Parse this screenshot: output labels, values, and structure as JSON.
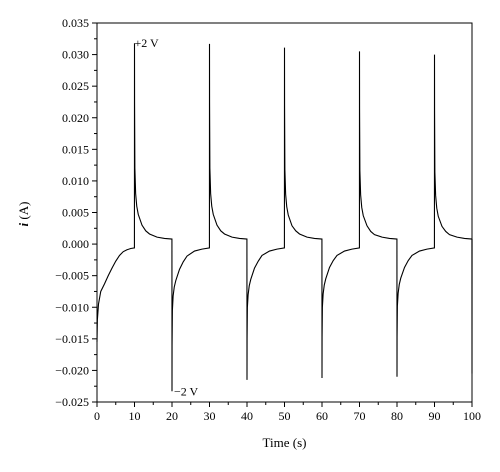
{
  "chart_data": {
    "type": "line",
    "xlabel": "Time (s)",
    "ylabel_italic": "i",
    "ylabel_rest": " (A)",
    "xlim": [
      0,
      100
    ],
    "ylim": [
      -0.025,
      0.035
    ],
    "xticks": [
      0,
      10,
      20,
      30,
      40,
      50,
      60,
      70,
      80,
      90,
      100
    ],
    "yticks": [
      -0.025,
      -0.02,
      -0.015,
      -0.01,
      -0.005,
      0.0,
      0.005,
      0.01,
      0.015,
      0.02,
      0.025,
      0.03,
      0.035
    ],
    "ytick_labels": [
      "−0.025",
      "−0.020",
      "−0.015",
      "−0.010",
      "−0.005",
      "0.000",
      "0.005",
      "0.010",
      "0.015",
      "0.020",
      "0.025",
      "0.030",
      "0.035"
    ],
    "grid": false,
    "line_color": "#000000",
    "annotations": [
      {
        "text": "+2 V",
        "x": 10,
        "y": 0.0318
      },
      {
        "text": "−2 V",
        "x": 20,
        "y": -0.0233
      }
    ],
    "series": [
      {
        "x": [
          0,
          0.1,
          0.4,
          1,
          2,
          3,
          4,
          5,
          6,
          7,
          8,
          9,
          9.98,
          10,
          10.02,
          10.1,
          10.3,
          10.6,
          11,
          12,
          13,
          14,
          16,
          18,
          19.98,
          20,
          20.02,
          20.1,
          20.3,
          20.6,
          21,
          22,
          23,
          24,
          26,
          28,
          29.98,
          30,
          30.02,
          30.1,
          30.3,
          30.6,
          31,
          32,
          33,
          34,
          36,
          38,
          39.98,
          40,
          40.02,
          40.1,
          40.3,
          40.6,
          41,
          42,
          43,
          44,
          46,
          48,
          49.98,
          50,
          50.02,
          50.1,
          50.3,
          50.6,
          51,
          52,
          53,
          54,
          56,
          58,
          59.98,
          60,
          60.02,
          60.1,
          60.3,
          60.6,
          61,
          62,
          63,
          64,
          66,
          68,
          69.98,
          70,
          70.02,
          70.1,
          70.3,
          70.6,
          71,
          72,
          73,
          74,
          76,
          78,
          79.98,
          80,
          80.02,
          80.1,
          80.3,
          80.6,
          81,
          82,
          83,
          84,
          86,
          88,
          89.98,
          90,
          90.02,
          90.1,
          90.3,
          90.6,
          91,
          92,
          93,
          94,
          96,
          98,
          99.98,
          100,
          100.02
        ],
        "y": [
          -0.0155,
          -0.012,
          -0.0095,
          -0.0075,
          -0.0063,
          -0.005,
          -0.0038,
          -0.0027,
          -0.0018,
          -0.0012,
          -0.0009,
          -0.0007,
          -0.0006,
          0.0318,
          0.0225,
          0.012,
          0.008,
          0.006,
          0.0047,
          0.003,
          0.0021,
          0.0016,
          0.0011,
          0.0009,
          0.0008,
          -0.0233,
          -0.016,
          -0.0105,
          -0.0082,
          -0.0068,
          -0.0058,
          -0.004,
          -0.0028,
          -0.0019,
          -0.0011,
          -0.0008,
          -0.0006,
          0.0317,
          0.0225,
          0.012,
          0.008,
          0.006,
          0.0047,
          0.003,
          0.0021,
          0.0016,
          0.0011,
          0.0009,
          0.0008,
          -0.0215,
          -0.015,
          -0.01,
          -0.008,
          -0.0066,
          -0.0056,
          -0.0038,
          -0.0027,
          -0.0018,
          -0.0011,
          -0.0008,
          -0.0006,
          0.0311,
          0.022,
          0.0118,
          0.0079,
          0.0059,
          0.0046,
          0.0029,
          0.0021,
          0.0016,
          0.0011,
          0.0009,
          0.0008,
          -0.0212,
          -0.0148,
          -0.01,
          -0.0079,
          -0.0065,
          -0.0055,
          -0.0037,
          -0.0026,
          -0.0018,
          -0.0011,
          -0.0008,
          -0.0006,
          0.0305,
          0.0215,
          0.0116,
          0.0078,
          0.0058,
          0.0045,
          0.0029,
          0.002,
          0.0015,
          0.0011,
          0.0009,
          0.0008,
          -0.021,
          -0.0147,
          -0.0098,
          -0.0078,
          -0.0064,
          -0.0054,
          -0.0037,
          -0.0026,
          -0.0018,
          -0.0011,
          -0.0008,
          -0.0006,
          0.03,
          0.0212,
          0.0114,
          0.0077,
          0.0057,
          0.0044,
          0.0028,
          0.002,
          0.0015,
          0.0011,
          0.0009,
          0.0008,
          -0.0205,
          0.0008
        ]
      }
    ]
  }
}
